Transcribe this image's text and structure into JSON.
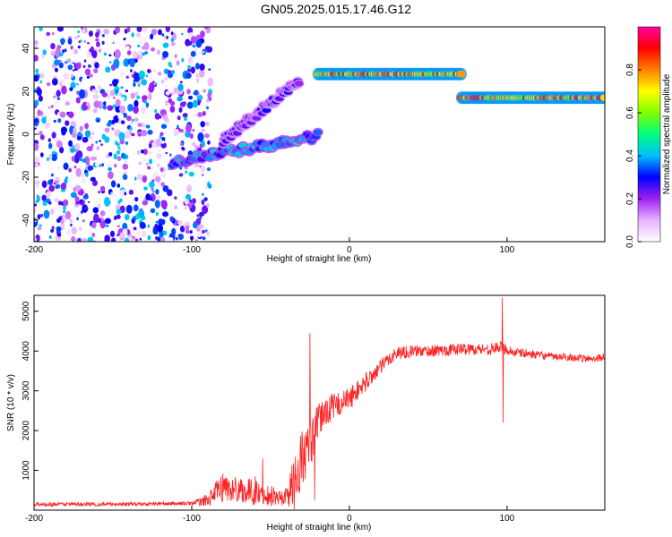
{
  "title": "GN05.2025.015.17.46.G12",
  "chart_data": [
    {
      "type": "heatmap",
      "xlabel": "Height of straight line (km)",
      "ylabel": "Frequency (Hz)",
      "xlim": [
        -200,
        162
      ],
      "ylim": [
        -50,
        50
      ],
      "xticks": [
        -200,
        -100,
        0,
        100
      ],
      "yticks": [
        -40,
        -20,
        0,
        20,
        40
      ],
      "colorbar": {
        "label": "Normalized spectral amplitude",
        "range": [
          0,
          1
        ],
        "ticks": [
          0.0,
          0.2,
          0.4,
          0.6,
          0.8
        ],
        "colors": [
          "#ffffff",
          "#e6b3ff",
          "#a020f0",
          "#0000ff",
          "#00c0ff",
          "#00ff80",
          "#80ff00",
          "#ffff00",
          "#ff8000",
          "#ff0000",
          "#ff00a0"
        ]
      },
      "features": [
        {
          "x": [
            -200,
            -100
          ],
          "y": [
            -50,
            50
          ],
          "amplitude": 0.2,
          "kind": "noise"
        },
        {
          "x": [
            -112,
            -20
          ],
          "y_start": -13,
          "y_end": -1,
          "amplitude": 0.45,
          "kind": "ridge"
        },
        {
          "x": [
            -80,
            -32
          ],
          "y_start": -3,
          "y_end": 25,
          "amplitude": 0.3,
          "kind": "ridge"
        },
        {
          "x": [
            -20,
            71
          ],
          "y_start": 28,
          "y_end": 28,
          "amplitude": 0.95,
          "kind": "ridge"
        },
        {
          "x": [
            71,
            162
          ],
          "y_start": 17,
          "y_end": 17,
          "amplitude": 0.95,
          "kind": "ridge"
        }
      ]
    },
    {
      "type": "line",
      "xlabel": "Height of straight line (km)",
      "ylabel": "SNR (10 * v/v)",
      "xlim": [
        -200,
        162
      ],
      "ylim": [
        0,
        5400
      ],
      "xticks": [
        -200,
        -100,
        0,
        100
      ],
      "yticks": [
        1000,
        2000,
        3000,
        4000,
        5000
      ],
      "color": "#ff2020",
      "x": [
        -200,
        -150,
        -120,
        -100,
        -90,
        -80,
        -75,
        -70,
        -65,
        -60,
        -55,
        -50,
        -45,
        -40,
        -35,
        -30,
        -25,
        -20,
        -15,
        -10,
        -5,
        0,
        5,
        10,
        15,
        20,
        25,
        30,
        40,
        50,
        60,
        70,
        80,
        90,
        95,
        100,
        105,
        110,
        120,
        130,
        140,
        150,
        162
      ],
      "y": [
        150,
        150,
        160,
        170,
        250,
        600,
        500,
        550,
        450,
        500,
        350,
        400,
        300,
        350,
        700,
        1300,
        1600,
        2200,
        2500,
        2600,
        2700,
        2800,
        3000,
        3200,
        3400,
        3600,
        3800,
        3950,
        4000,
        4000,
        4020,
        4050,
        4050,
        4050,
        4100,
        4050,
        3950,
        3950,
        3900,
        3850,
        3850,
        3800,
        3850
      ],
      "noise": [
        50,
        50,
        50,
        50,
        150,
        400,
        300,
        350,
        300,
        400,
        200,
        300,
        200,
        250,
        700,
        800,
        600,
        450,
        400,
        350,
        300,
        300,
        250,
        250,
        200,
        200,
        180,
        180,
        150,
        150,
        150,
        150,
        150,
        150,
        150,
        150,
        120,
        120,
        100,
        100,
        100,
        100,
        100
      ],
      "spikes": [
        {
          "x": -55,
          "y": 1300
        },
        {
          "x": -25,
          "y": 4450
        },
        {
          "x": -22,
          "y": 250
        },
        {
          "x": 97,
          "y": 5350
        },
        {
          "x": 97.5,
          "y": 2200
        }
      ]
    }
  ]
}
